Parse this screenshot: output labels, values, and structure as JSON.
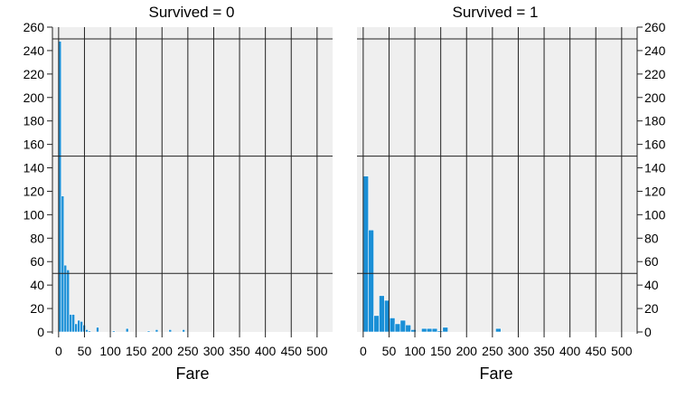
{
  "chart_data": [
    {
      "type": "bar",
      "title": "Survived = 0",
      "xlabel": "Fare",
      "ylabel": "",
      "xlim": [
        -12,
        530
      ],
      "ylim": [
        0,
        260
      ],
      "x_ticks": [
        0,
        50,
        100,
        150,
        200,
        250,
        300,
        350,
        400,
        450,
        500
      ],
      "y_ticks": [
        0,
        20,
        40,
        60,
        80,
        100,
        120,
        140,
        160,
        180,
        200,
        220,
        240,
        260
      ],
      "y_ticks_side": "left",
      "grid": true,
      "bin_width": 5.2,
      "bar_color": "#1a8fd6",
      "bins": [
        {
          "x0": 0.0,
          "count": 248
        },
        {
          "x0": 5.2,
          "count": 116
        },
        {
          "x0": 10.4,
          "count": 57
        },
        {
          "x0": 15.6,
          "count": 53
        },
        {
          "x0": 20.8,
          "count": 15
        },
        {
          "x0": 26.0,
          "count": 15
        },
        {
          "x0": 31.2,
          "count": 7
        },
        {
          "x0": 36.4,
          "count": 10
        },
        {
          "x0": 41.6,
          "count": 9
        },
        {
          "x0": 46.8,
          "count": 6
        },
        {
          "x0": 52.0,
          "count": 2
        },
        {
          "x0": 57.2,
          "count": 1
        },
        {
          "x0": 72.8,
          "count": 4
        },
        {
          "x0": 104.0,
          "count": 1
        },
        {
          "x0": 130.0,
          "count": 3
        },
        {
          "x0": 171.6,
          "count": 1
        },
        {
          "x0": 187.2,
          "count": 2
        },
        {
          "x0": 213.2,
          "count": 2
        },
        {
          "x0": 239.2,
          "count": 2
        }
      ]
    },
    {
      "type": "bar",
      "title": "Survived = 1",
      "xlabel": "Fare",
      "ylabel": "",
      "xlim": [
        -12,
        530
      ],
      "ylim": [
        0,
        260
      ],
      "x_ticks": [
        0,
        50,
        100,
        150,
        200,
        250,
        300,
        350,
        400,
        450,
        500
      ],
      "y_ticks": [
        0,
        20,
        40,
        60,
        80,
        100,
        120,
        140,
        160,
        180,
        200,
        220,
        240,
        260
      ],
      "y_ticks_side": "right",
      "grid": true,
      "bin_width": 10.25,
      "bar_color": "#1a8fd6",
      "bins": [
        {
          "x0": 0.0,
          "count": 133
        },
        {
          "x0": 10.25,
          "count": 87
        },
        {
          "x0": 20.5,
          "count": 14
        },
        {
          "x0": 30.75,
          "count": 31
        },
        {
          "x0": 41.0,
          "count": 27
        },
        {
          "x0": 51.25,
          "count": 12
        },
        {
          "x0": 61.5,
          "count": 7
        },
        {
          "x0": 71.75,
          "count": 10
        },
        {
          "x0": 82.0,
          "count": 6
        },
        {
          "x0": 92.25,
          "count": 2
        },
        {
          "x0": 102.5,
          "count": 0
        },
        {
          "x0": 112.75,
          "count": 3
        },
        {
          "x0": 123.0,
          "count": 3
        },
        {
          "x0": 133.25,
          "count": 3
        },
        {
          "x0": 143.5,
          "count": 1
        },
        {
          "x0": 153.75,
          "count": 4
        },
        {
          "x0": 256.25,
          "count": 3
        }
      ]
    }
  ]
}
